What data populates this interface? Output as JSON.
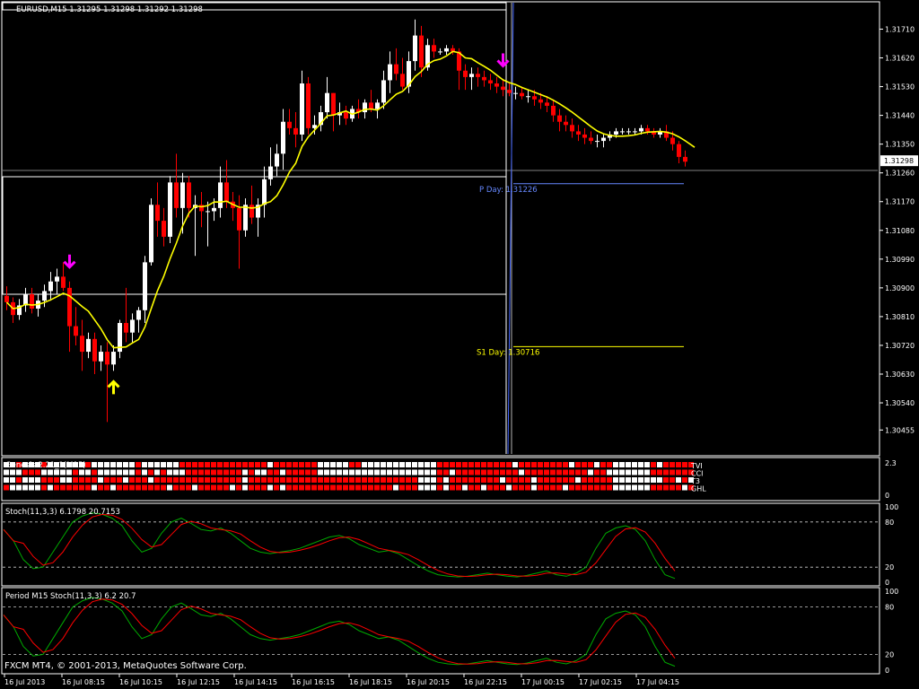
{
  "symbol_header": "EURUSD,M15  1.31295 1.31298 1.31292 1.31298",
  "footer": "FXCM MT4, © 2001-2013, MetaQuotes Software Corp.",
  "chart_data": [
    {
      "type": "candlestick",
      "name": "EURUSD,M15",
      "ylim": [
        1.3038,
        1.3179
      ],
      "price_ticks": [
        "1.31710",
        "1.31620",
        "1.31530",
        "1.31440",
        "1.31350",
        "1.31260",
        "1.31170",
        "1.31080",
        "1.30990",
        "1.30900",
        "1.30810",
        "1.30720",
        "1.30630",
        "1.30540",
        "1.30455"
      ],
      "current_price": "1.31298",
      "time_ticks": [
        "16 Jul 2013",
        "16 Jul 08:15",
        "16 Jul 10:15",
        "16 Jul 12:15",
        "16 Jul 14:15",
        "16 Jul 16:15",
        "16 Jul 18:15",
        "16 Jul 20:15",
        "16 Jul 22:15",
        "17 Jul 00:15",
        "17 Jul 02:15",
        "17 Jul 04:15"
      ],
      "candles": [
        [
          1.30875,
          1.30905,
          1.3083,
          1.30855
        ],
        [
          1.30855,
          1.3087,
          1.3079,
          1.30815
        ],
        [
          1.30815,
          1.30865,
          1.308,
          1.30845
        ],
        [
          1.30845,
          1.309,
          1.30825,
          1.3088
        ],
        [
          1.3088,
          1.309,
          1.3082,
          1.30835
        ],
        [
          1.30835,
          1.3088,
          1.3081,
          1.3086
        ],
        [
          1.3086,
          1.3091,
          1.3084,
          1.3089
        ],
        [
          1.3089,
          1.3095,
          1.3086,
          1.3092
        ],
        [
          1.3092,
          1.3096,
          1.3088,
          1.30935
        ],
        [
          1.30935,
          1.3098,
          1.3089,
          1.309
        ],
        [
          1.309,
          1.3092,
          1.307,
          1.3078
        ],
        [
          1.3078,
          1.3084,
          1.3072,
          1.3075
        ],
        [
          1.3075,
          1.308,
          1.3064,
          1.307
        ],
        [
          1.307,
          1.3076,
          1.3068,
          1.3074
        ],
        [
          1.3074,
          1.3076,
          1.3063,
          1.3067
        ],
        [
          1.3067,
          1.3072,
          1.3064,
          1.307
        ],
        [
          1.307,
          1.3073,
          1.3048,
          1.3066
        ],
        [
          1.3066,
          1.3072,
          1.3064,
          1.307
        ],
        [
          1.307,
          1.308,
          1.3068,
          1.3079
        ],
        [
          1.3079,
          1.309,
          1.3073,
          1.3076
        ],
        [
          1.3076,
          1.3082,
          1.3073,
          1.308
        ],
        [
          1.308,
          1.3084,
          1.3076,
          1.3083
        ],
        [
          1.3083,
          1.31,
          1.3079,
          1.3098
        ],
        [
          1.3098,
          1.3118,
          1.3097,
          1.3116
        ],
        [
          1.3116,
          1.3123,
          1.3106,
          1.3111
        ],
        [
          1.3111,
          1.3115,
          1.3103,
          1.3106
        ],
        [
          1.3106,
          1.3125,
          1.3104,
          1.3123
        ],
        [
          1.3123,
          1.3132,
          1.3112,
          1.3115
        ],
        [
          1.3115,
          1.3126,
          1.3107,
          1.3123
        ],
        [
          1.3123,
          1.3125,
          1.3112,
          1.3115
        ],
        [
          1.3115,
          1.3119,
          1.31,
          1.3116
        ],
        [
          1.3116,
          1.312,
          1.3109,
          1.3114
        ],
        [
          1.3114,
          1.3117,
          1.3103,
          1.3114
        ],
        [
          1.3114,
          1.3118,
          1.3111,
          1.3115
        ],
        [
          1.3115,
          1.3128,
          1.3112,
          1.3123
        ],
        [
          1.3123,
          1.313,
          1.3115,
          1.3117
        ],
        [
          1.3117,
          1.312,
          1.3111,
          1.3115
        ],
        [
          1.3115,
          1.3119,
          1.3096,
          1.3108
        ],
        [
          1.3108,
          1.3118,
          1.3106,
          1.3116
        ],
        [
          1.3116,
          1.3122,
          1.311,
          1.3112
        ],
        [
          1.3112,
          1.3118,
          1.3106,
          1.3116
        ],
        [
          1.3116,
          1.3128,
          1.3112,
          1.3124
        ],
        [
          1.3124,
          1.3134,
          1.3122,
          1.3128
        ],
        [
          1.3128,
          1.3135,
          1.3125,
          1.3132
        ],
        [
          1.3132,
          1.3146,
          1.3127,
          1.3142
        ],
        [
          1.3142,
          1.3146,
          1.3138,
          1.314
        ],
        [
          1.314,
          1.3145,
          1.3134,
          1.3138
        ],
        [
          1.3138,
          1.3158,
          1.3136,
          1.3154
        ],
        [
          1.3154,
          1.3156,
          1.3138,
          1.314
        ],
        [
          1.314,
          1.3144,
          1.3138,
          1.3141
        ],
        [
          1.3141,
          1.3147,
          1.3139,
          1.3145
        ],
        [
          1.3145,
          1.3156,
          1.3143,
          1.3151
        ],
        [
          1.3151,
          1.3151,
          1.3139,
          1.3144
        ],
        [
          1.3144,
          1.3148,
          1.3141,
          1.3145
        ],
        [
          1.3145,
          1.3147,
          1.3141,
          1.3143
        ],
        [
          1.3143,
          1.3147,
          1.3142,
          1.3146
        ],
        [
          1.3146,
          1.3149,
          1.3143,
          1.3145
        ],
        [
          1.3145,
          1.3149,
          1.3143,
          1.3148
        ],
        [
          1.3148,
          1.3152,
          1.3145,
          1.3146
        ],
        [
          1.3146,
          1.3149,
          1.3143,
          1.3148
        ],
        [
          1.3148,
          1.3158,
          1.3146,
          1.3155
        ],
        [
          1.3155,
          1.3164,
          1.3151,
          1.316
        ],
        [
          1.316,
          1.3165,
          1.3155,
          1.3157
        ],
        [
          1.3157,
          1.3162,
          1.3152,
          1.3153
        ],
        [
          1.3153,
          1.3164,
          1.3151,
          1.3161
        ],
        [
          1.3161,
          1.3174,
          1.3158,
          1.3169
        ],
        [
          1.3169,
          1.3172,
          1.3156,
          1.3159
        ],
        [
          1.3159,
          1.3168,
          1.3158,
          1.3166
        ],
        [
          1.3166,
          1.3168,
          1.3162,
          1.3164
        ],
        [
          1.3164,
          1.3165,
          1.3163,
          1.3164
        ],
        [
          1.3164,
          1.3166,
          1.3163,
          1.3165
        ],
        [
          1.3165,
          1.3166,
          1.3163,
          1.3164
        ],
        [
          1.3164,
          1.3165,
          1.3152,
          1.3158
        ],
        [
          1.3158,
          1.316,
          1.3152,
          1.3156
        ],
        [
          1.3156,
          1.3159,
          1.3152,
          1.3157
        ],
        [
          1.3157,
          1.3159,
          1.3153,
          1.3156
        ],
        [
          1.3156,
          1.3158,
          1.3153,
          1.3155
        ],
        [
          1.3155,
          1.3157,
          1.3152,
          1.3154
        ],
        [
          1.3154,
          1.3156,
          1.3151,
          1.3153
        ],
        [
          1.3153,
          1.3155,
          1.315,
          1.3152
        ],
        [
          1.3152,
          1.3154,
          1.315,
          1.3151
        ],
        [
          1.3151,
          1.3153,
          1.3149,
          1.3151
        ],
        [
          1.3151,
          1.3153,
          1.3149,
          1.315
        ],
        [
          1.315,
          1.3152,
          1.3148,
          1.315
        ],
        [
          1.315,
          1.3152,
          1.3147,
          1.3149
        ],
        [
          1.3149,
          1.3151,
          1.3146,
          1.3148
        ],
        [
          1.3148,
          1.315,
          1.3145,
          1.3147
        ],
        [
          1.3147,
          1.3149,
          1.3142,
          1.3144
        ],
        [
          1.3144,
          1.3146,
          1.3139,
          1.3142
        ],
        [
          1.3142,
          1.3144,
          1.3139,
          1.3141
        ],
        [
          1.3141,
          1.3143,
          1.3137,
          1.3139
        ],
        [
          1.3139,
          1.3141,
          1.3136,
          1.3138
        ],
        [
          1.3138,
          1.314,
          1.3135,
          1.3137
        ],
        [
          1.3137,
          1.3139,
          1.3135,
          1.3136
        ],
        [
          1.3136,
          1.3138,
          1.3134,
          1.3136
        ],
        [
          1.3136,
          1.3138,
          1.3134,
          1.3137
        ],
        [
          1.3137,
          1.3139,
          1.3136,
          1.3138
        ],
        [
          1.3138,
          1.314,
          1.3137,
          1.3139
        ],
        [
          1.3139,
          1.314,
          1.3138,
          1.3139
        ],
        [
          1.3139,
          1.314,
          1.3138,
          1.3139
        ],
        [
          1.3139,
          1.314,
          1.3138,
          1.3139
        ],
        [
          1.3139,
          1.3141,
          1.3138,
          1.314
        ],
        [
          1.314,
          1.3141,
          1.3138,
          1.3139
        ],
        [
          1.3139,
          1.314,
          1.3137,
          1.3138
        ],
        [
          1.3138,
          1.314,
          1.3137,
          1.3139
        ],
        [
          1.3139,
          1.3141,
          1.3136,
          1.3137
        ],
        [
          1.3137,
          1.3139,
          1.3133,
          1.3135
        ],
        [
          1.3135,
          1.3136,
          1.3129,
          1.3131
        ],
        [
          1.3131,
          1.3133,
          1.3128,
          1.31295
        ]
      ],
      "ma_line_color": "#ffff00",
      "bull_color": "#ffffff",
      "bear_color": "#ff0000",
      "pivot_lines": [
        {
          "label": "P Day: 1.31226",
          "value": 1.31226,
          "color": "#6688ff"
        },
        {
          "label": "S1 Day: 1.30716",
          "value": 1.30716,
          "color": "#ffff00"
        }
      ],
      "arrows": [
        {
          "type": "sell",
          "bar": 10,
          "color": "#ff00ff"
        },
        {
          "type": "buy",
          "bar": 17,
          "color": "#ffff00"
        },
        {
          "type": "sell",
          "bar": 79,
          "color": "#ff00ff"
        }
      ]
    },
    {
      "type": "heatmap",
      "name": "Genesis 2.21_1(M15)",
      "rows": [
        "TVI",
        "CCI",
        "T3",
        "GHL"
      ],
      "ylim_labels": [
        "2.3",
        "0"
      ],
      "colors": {
        "on": "#ff0000",
        "off": "#ffffff"
      }
    },
    {
      "type": "line",
      "name": "Stoch(11,3,3) 6.1798 20.7153",
      "ylim": [
        0,
        100
      ],
      "levels": [
        "100",
        "80",
        "20",
        "0"
      ],
      "series_colors": [
        "#00aa00",
        "#ff0000"
      ]
    },
    {
      "type": "line",
      "name": "Period M15 Stoch(11,3,3) 6.2 20.7",
      "ylim": [
        0,
        100
      ],
      "levels": [
        "100",
        "80",
        "20",
        "0"
      ],
      "series_colors": [
        "#00aa00",
        "#ff0000"
      ]
    }
  ]
}
